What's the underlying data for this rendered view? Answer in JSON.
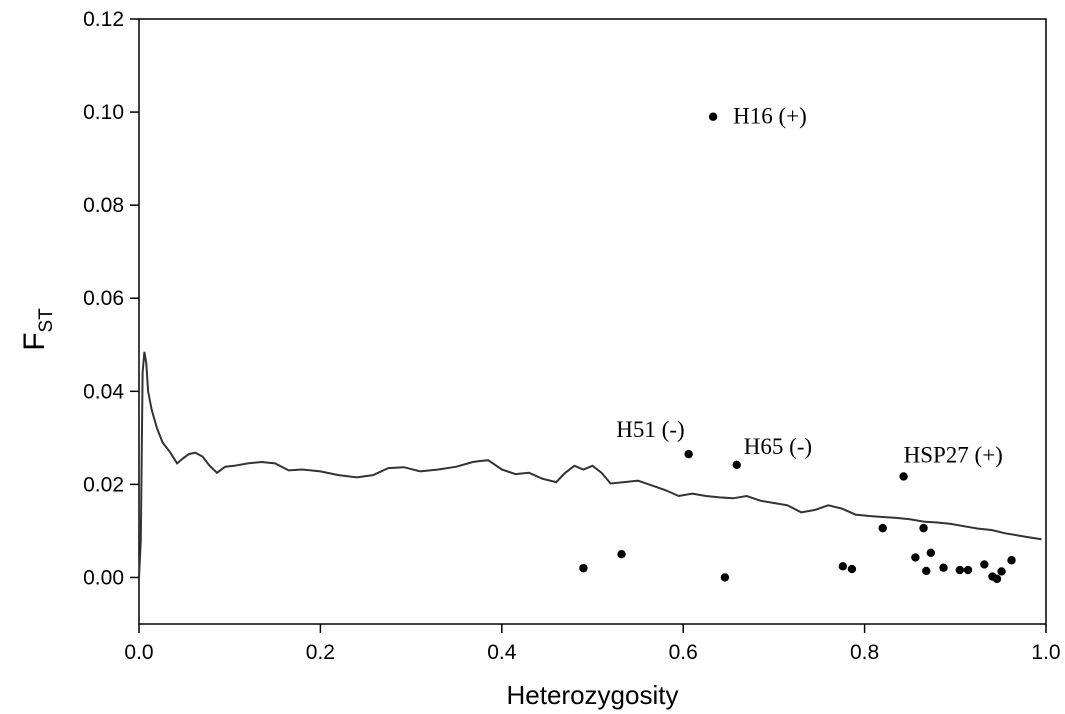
{
  "chart_data": {
    "type": "scatter",
    "xlabel": "Heterozygosity",
    "ylabel_main": "F",
    "ylabel_sub": "ST",
    "xlim": [
      0.0,
      1.0
    ],
    "ylim": [
      -0.01,
      0.12
    ],
    "x_ticks": [
      0.0,
      0.2,
      0.4,
      0.6,
      0.8,
      1.0
    ],
    "x_tick_labels": [
      "0.0",
      "0.2",
      "0.4",
      "0.6",
      "0.8",
      "1.0"
    ],
    "y_ticks": [
      0.0,
      0.02,
      0.04,
      0.06,
      0.08,
      0.1,
      0.12
    ],
    "y_tick_labels": [
      "0.00",
      "0.02",
      "0.04",
      "0.06",
      "0.08",
      "0.10",
      "0.12"
    ],
    "grid": false,
    "points": [
      {
        "x": 0.633,
        "y": 0.099,
        "label": "H16 (+)"
      },
      {
        "x": 0.606,
        "y": 0.0265,
        "label": "H51 (-)"
      },
      {
        "x": 0.659,
        "y": 0.0242,
        "label": "H65 (-)"
      },
      {
        "x": 0.843,
        "y": 0.0217,
        "label": "HSP27 (+)"
      },
      {
        "x": 0.49,
        "y": 0.002
      },
      {
        "x": 0.532,
        "y": 0.005
      },
      {
        "x": 0.646,
        "y": 0.0
      },
      {
        "x": 0.776,
        "y": 0.0024
      },
      {
        "x": 0.786,
        "y": 0.0018
      },
      {
        "x": 0.82,
        "y": 0.0106
      },
      {
        "x": 0.856,
        "y": 0.0043
      },
      {
        "x": 0.865,
        "y": 0.0106
      },
      {
        "x": 0.868,
        "y": 0.0014
      },
      {
        "x": 0.873,
        "y": 0.0053
      },
      {
        "x": 0.887,
        "y": 0.0021
      },
      {
        "x": 0.905,
        "y": 0.0016
      },
      {
        "x": 0.914,
        "y": 0.0016
      },
      {
        "x": 0.932,
        "y": 0.0028
      },
      {
        "x": 0.941,
        "y": 0.0002
      },
      {
        "x": 0.946,
        "y": -0.0003
      },
      {
        "x": 0.951,
        "y": 0.0013
      },
      {
        "x": 0.962,
        "y": 0.0037
      }
    ],
    "neutral_line": {
      "x": [
        0.0,
        0.002,
        0.004,
        0.006,
        0.008,
        0.01,
        0.014,
        0.02,
        0.026,
        0.034,
        0.042,
        0.048,
        0.055,
        0.062,
        0.07,
        0.078,
        0.086,
        0.095,
        0.105,
        0.12,
        0.135,
        0.15,
        0.165,
        0.18,
        0.2,
        0.22,
        0.24,
        0.258,
        0.275,
        0.292,
        0.31,
        0.33,
        0.35,
        0.368,
        0.375,
        0.385,
        0.4,
        0.415,
        0.43,
        0.445,
        0.46,
        0.47,
        0.48,
        0.49,
        0.5,
        0.51,
        0.52,
        0.535,
        0.55,
        0.565,
        0.58,
        0.595,
        0.61,
        0.625,
        0.64,
        0.655,
        0.67,
        0.685,
        0.7,
        0.715,
        0.73,
        0.745,
        0.76,
        0.775,
        0.79,
        0.805,
        0.82,
        0.835,
        0.85,
        0.865,
        0.88,
        0.895,
        0.91,
        0.925,
        0.94,
        0.955,
        0.97,
        0.985,
        0.995
      ],
      "y": [
        0.0,
        0.008,
        0.044,
        0.0485,
        0.046,
        0.04,
        0.036,
        0.032,
        0.029,
        0.027,
        0.0245,
        0.0255,
        0.0265,
        0.0268,
        0.026,
        0.024,
        0.0225,
        0.0238,
        0.024,
        0.0245,
        0.0248,
        0.0245,
        0.023,
        0.0232,
        0.0228,
        0.022,
        0.0215,
        0.022,
        0.0235,
        0.0237,
        0.0228,
        0.0232,
        0.0238,
        0.0248,
        0.025,
        0.0252,
        0.0232,
        0.0222,
        0.0225,
        0.0212,
        0.0205,
        0.0225,
        0.024,
        0.0232,
        0.024,
        0.0225,
        0.0202,
        0.0205,
        0.0208,
        0.0198,
        0.0188,
        0.0175,
        0.018,
        0.0175,
        0.0172,
        0.017,
        0.0175,
        0.0165,
        0.016,
        0.0155,
        0.014,
        0.0145,
        0.0155,
        0.0148,
        0.0135,
        0.0132,
        0.013,
        0.0128,
        0.0125,
        0.012,
        0.0118,
        0.0115,
        0.011,
        0.0105,
        0.0102,
        0.0095,
        0.009,
        0.0085,
        0.0082
      ]
    }
  }
}
